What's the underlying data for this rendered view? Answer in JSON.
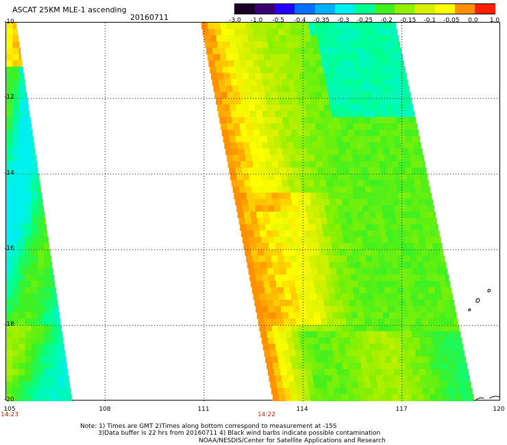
{
  "header": {
    "title": "ASCAT 25KM MLE-1 ascending",
    "date": "20160711"
  },
  "colorbar": {
    "labels": [
      "-3.0",
      "-1.0",
      "-0.5",
      "-0.4",
      "-0.35",
      "-0.3",
      "-0.25",
      "-0.2",
      "-0.15",
      "-0.1",
      "-0.05",
      "0.0",
      "1.0"
    ],
    "colors": [
      "#1a0026",
      "#3b0070",
      "#2400ff",
      "#0070ff",
      "#00b0ff",
      "#00f0f0",
      "#00ff90",
      "#40f020",
      "#90f000",
      "#d8f000",
      "#ffff00",
      "#ff9000",
      "#ff2000"
    ]
  },
  "map": {
    "lon_labels": [
      "105",
      "108",
      "111",
      "114",
      "117",
      "120"
    ],
    "lat_labels": [
      "-10",
      "-12",
      "-14",
      "-16",
      "-18",
      "-20"
    ],
    "time_labels": [
      "14:23",
      "14:22"
    ]
  },
  "chart_data": {
    "type": "heatmap",
    "title": "ASCAT 25KM MLE-1 ascending",
    "date": "20160711",
    "xlim": [
      105,
      120
    ],
    "ylim": [
      -20,
      -10
    ],
    "grid": true,
    "colorscale_values": [
      -3.0,
      -1.0,
      -0.5,
      -0.4,
      -0.35,
      -0.3,
      -0.25,
      -0.2,
      -0.15,
      -0.1,
      -0.05,
      0.0,
      1.0
    ],
    "swaths": [
      {
        "time": "14:23",
        "lon_range_at_top": [
          105.0,
          105.3
        ],
        "lon_range_at_bottom": [
          105.0,
          107.0
        ],
        "typical_value": -0.25
      },
      {
        "time": "14:22",
        "lon_range_at_top": [
          110.9,
          116.8
        ],
        "lon_range_at_bottom": [
          113.1,
          119.2
        ],
        "typical_value": -0.15
      }
    ]
  },
  "notes": {
    "line1": "Note: 1) Times are GMT 2)Times along bottom correspond to measurement at -15S",
    "line2": "3)Data buffer is 22 hrs from 20160711 4) Black wind barbs indicate possible contamination",
    "line3": "NOAA/NESDIS/Center for Satellite Applications and Research"
  }
}
